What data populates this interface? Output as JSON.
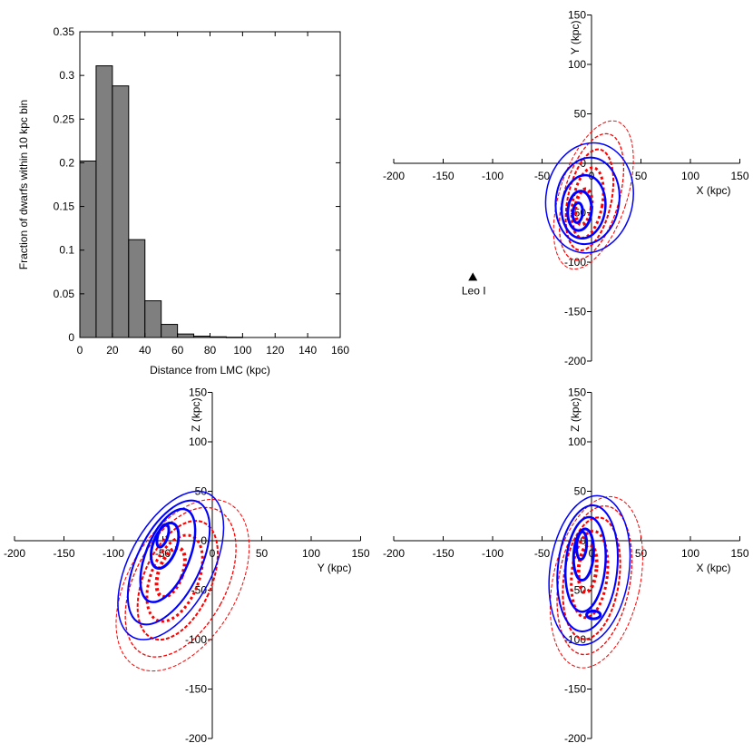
{
  "chart_data": [
    {
      "type": "bar",
      "panel": "histogram",
      "xlabel": "Distance from LMC (kpc)",
      "ylabel": "Fraction of dwarfs within 10 kpc bin",
      "xlim": [
        0,
        160
      ],
      "ylim": [
        0,
        0.35
      ],
      "xticks": [
        0,
        20,
        40,
        60,
        80,
        100,
        120,
        140,
        160
      ],
      "yticks": [
        0,
        0.05,
        0.1,
        0.15,
        0.2,
        0.25,
        0.3,
        0.35
      ],
      "bin_width": 10,
      "bins": [
        0,
        10,
        20,
        30,
        40,
        50,
        60,
        70,
        80,
        90
      ],
      "values": [
        0.202,
        0.311,
        0.288,
        0.112,
        0.042,
        0.015,
        0.004,
        0.0015,
        0.0008,
        0.0003
      ],
      "bar_color": "#7f7f7f"
    },
    {
      "type": "contour",
      "panel": "X-Y",
      "xlabel": "X (kpc)",
      "ylabel": "Y (kpc)",
      "xlim": [
        -200,
        150
      ],
      "ylim": [
        -200,
        150
      ],
      "xticks": [
        -200,
        -150,
        -100,
        -50,
        0,
        50,
        100,
        150
      ],
      "yticks": [
        -200,
        -150,
        -100,
        -50,
        0,
        50,
        100,
        150
      ],
      "annotations": [
        {
          "text": "Leo I",
          "x": -120,
          "y": -115,
          "marker": "triangle"
        }
      ],
      "series": [
        {
          "color": "#ff0000",
          "style": "dashed",
          "levels": [
            {
              "cx": 2,
              "cy": -32,
              "rx": 34,
              "ry": 78,
              "angle": 18,
              "width": 1,
              "dash": "4,2"
            },
            {
              "cx": 0,
              "cy": -34,
              "rx": 28,
              "ry": 66,
              "angle": 16,
              "width": 1.3,
              "dash": "4,2"
            },
            {
              "cx": -2,
              "cy": -37,
              "rx": 22,
              "ry": 52,
              "angle": 12,
              "width": 2,
              "dash": "4,2"
            },
            {
              "cx": -4,
              "cy": -40,
              "rx": 15,
              "ry": 36,
              "angle": 10,
              "width": 3,
              "dash": "3,3"
            },
            {
              "cx": -8,
              "cy": -44,
              "rx": 8,
              "ry": 18,
              "angle": 8,
              "width": 4,
              "dash": "3,3"
            }
          ]
        },
        {
          "color": "#0000ff",
          "style": "solid",
          "levels": [
            {
              "cx": -2,
              "cy": -35,
              "rx": 44,
              "ry": 56,
              "angle": 10,
              "width": 1.5
            },
            {
              "cx": -4,
              "cy": -38,
              "rx": 32,
              "ry": 44,
              "angle": 8,
              "width": 2
            },
            {
              "cx": -8,
              "cy": -44,
              "rx": 22,
              "ry": 32,
              "angle": 6,
              "width": 2.5
            },
            {
              "cx": -12,
              "cy": -48,
              "rx": 12,
              "ry": 20,
              "angle": 5,
              "width": 3
            },
            {
              "cx": -14,
              "cy": -50,
              "rx": 5,
              "ry": 10,
              "angle": 5,
              "width": 3
            }
          ]
        }
      ]
    },
    {
      "type": "contour",
      "panel": "Y-Z",
      "xlabel": "Y (kpc)",
      "ylabel": "Z (kpc)",
      "xlim": [
        -200,
        150
      ],
      "ylim": [
        -200,
        150
      ],
      "xticks": [
        -200,
        -150,
        -100,
        -50,
        0,
        50,
        100,
        150
      ],
      "yticks": [
        -200,
        -150,
        -100,
        -50,
        0,
        50,
        100,
        150
      ],
      "series": [
        {
          "color": "#ff0000",
          "style": "dashed",
          "levels": [
            {
              "cx": -30,
              "cy": -45,
              "rx": 55,
              "ry": 95,
              "angle": 30,
              "width": 1,
              "dash": "4,2"
            },
            {
              "cx": -32,
              "cy": -42,
              "rx": 46,
              "ry": 82,
              "angle": 28,
              "width": 1.3,
              "dash": "4,2"
            },
            {
              "cx": -35,
              "cy": -40,
              "rx": 34,
              "ry": 64,
              "angle": 24,
              "width": 2,
              "dash": "4,2"
            },
            {
              "cx": -38,
              "cy": -38,
              "rx": 24,
              "ry": 46,
              "angle": 22,
              "width": 3,
              "dash": "3,3"
            },
            {
              "cx": -42,
              "cy": -32,
              "rx": 12,
              "ry": 26,
              "angle": 20,
              "width": 4,
              "dash": "3,3"
            }
          ]
        },
        {
          "color": "#0000ff",
          "style": "solid",
          "levels": [
            {
              "cx": -42,
              "cy": -25,
              "rx": 42,
              "ry": 82,
              "angle": 28,
              "width": 1.5
            },
            {
              "cx": -44,
              "cy": -22,
              "rx": 32,
              "ry": 68,
              "angle": 26,
              "width": 2
            },
            {
              "cx": -45,
              "cy": -15,
              "rx": 22,
              "ry": 50,
              "angle": 22,
              "width": 2.5
            },
            {
              "cx": -48,
              "cy": -5,
              "rx": 12,
              "ry": 24,
              "angle": 20,
              "width": 3
            },
            {
              "cx": -50,
              "cy": 5,
              "rx": 5,
              "ry": 12,
              "angle": 18,
              "width": 3
            }
          ]
        }
      ]
    },
    {
      "type": "contour",
      "panel": "X-Z",
      "xlabel": "X (kpc)",
      "ylabel": "Z (kpc)",
      "xlim": [
        -200,
        150
      ],
      "ylim": [
        -200,
        150
      ],
      "xticks": [
        -200,
        -150,
        -100,
        -50,
        0,
        50,
        100,
        150
      ],
      "yticks": [
        -200,
        -150,
        -100,
        -50,
        0,
        50,
        100,
        150
      ],
      "series": [
        {
          "color": "#ff0000",
          "style": "dashed",
          "levels": [
            {
              "cx": 5,
              "cy": -42,
              "rx": 44,
              "ry": 88,
              "angle": 12,
              "width": 1,
              "dash": "4,2"
            },
            {
              "cx": 3,
              "cy": -40,
              "rx": 36,
              "ry": 76,
              "angle": 10,
              "width": 1.3,
              "dash": "4,2"
            },
            {
              "cx": 0,
              "cy": -38,
              "rx": 28,
              "ry": 62,
              "angle": 8,
              "width": 2,
              "dash": "4,2"
            },
            {
              "cx": -2,
              "cy": -34,
              "rx": 18,
              "ry": 44,
              "angle": 6,
              "width": 3,
              "dash": "3,3"
            },
            {
              "cx": -4,
              "cy": -28,
              "rx": 9,
              "ry": 24,
              "angle": 5,
              "width": 4,
              "dash": "3,3"
            }
          ]
        },
        {
          "color": "#0000ff",
          "style": "solid",
          "levels": [
            {
              "cx": -2,
              "cy": -30,
              "rx": 40,
              "ry": 76,
              "angle": 8,
              "width": 1.5
            },
            {
              "cx": -4,
              "cy": -28,
              "rx": 30,
              "ry": 64,
              "angle": 6,
              "width": 2
            },
            {
              "cx": -6,
              "cy": -24,
              "rx": 20,
              "ry": 48,
              "angle": 5,
              "width": 2.5
            },
            {
              "cx": -8,
              "cy": -14,
              "rx": 10,
              "ry": 26,
              "angle": 4,
              "width": 3
            },
            {
              "cx": -10,
              "cy": -5,
              "rx": 5,
              "ry": 14,
              "angle": 4,
              "width": 3
            },
            {
              "cx": 2,
              "cy": -75,
              "rx": 7,
              "ry": 4,
              "angle": 0,
              "width": 3
            }
          ]
        }
      ]
    }
  ]
}
